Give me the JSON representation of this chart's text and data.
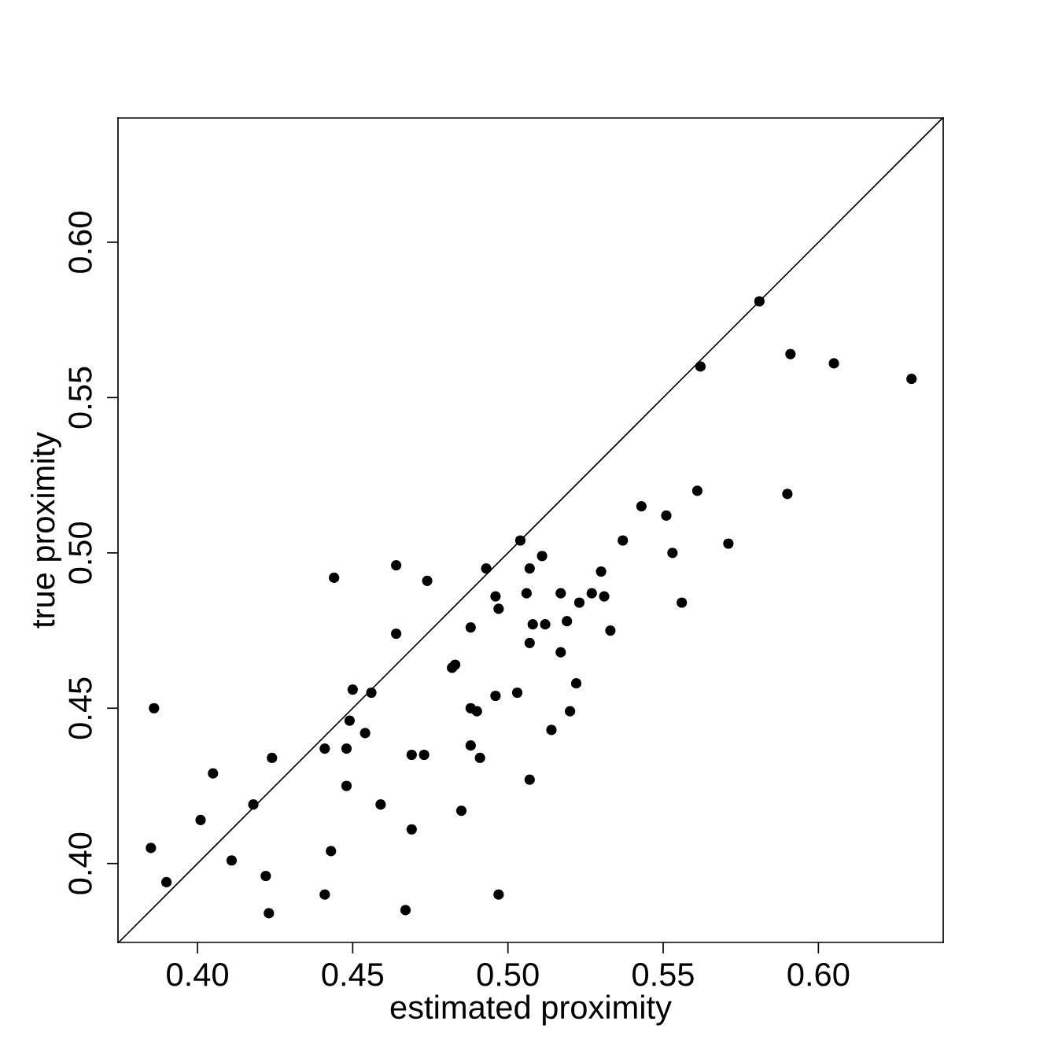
{
  "chart_data": {
    "type": "scatter",
    "xlabel": "estimated proximity",
    "ylabel": "true proximity",
    "xlim": [
      0.3744,
      0.6402
    ],
    "ylim": [
      0.3746,
      0.64
    ],
    "xticks": [
      {
        "value": 0.4,
        "label": "0.40"
      },
      {
        "value": 0.45,
        "label": "0.45"
      },
      {
        "value": 0.5,
        "label": "0.50"
      },
      {
        "value": 0.55,
        "label": "0.55"
      },
      {
        "value": 0.6,
        "label": "0.60"
      }
    ],
    "yticks": [
      {
        "value": 0.4,
        "label": "0.40"
      },
      {
        "value": 0.45,
        "label": "0.45"
      },
      {
        "value": 0.5,
        "label": "0.50"
      },
      {
        "value": 0.55,
        "label": "0.55"
      },
      {
        "value": 0.6,
        "label": "0.60"
      }
    ],
    "grid": false,
    "marker": "circle",
    "series": [
      {
        "color": "#000000",
        "x": [
          0.581,
          0.591,
          0.562,
          0.605,
          0.63,
          0.561,
          0.59,
          0.543,
          0.551,
          0.504,
          0.537,
          0.571,
          0.553,
          0.464,
          0.493,
          0.507,
          0.511,
          0.444,
          0.474,
          0.53,
          0.496,
          0.506,
          0.517,
          0.527,
          0.531,
          0.523,
          0.556,
          0.497,
          0.519,
          0.512,
          0.508,
          0.488,
          0.533,
          0.464,
          0.507,
          0.517,
          0.482,
          0.483,
          0.45,
          0.456,
          0.522,
          0.503,
          0.496,
          0.386,
          0.488,
          0.49,
          0.52,
          0.449,
          0.454,
          0.514,
          0.441,
          0.448,
          0.488,
          0.424,
          0.469,
          0.473,
          0.491,
          0.405,
          0.507,
          0.448,
          0.418,
          0.459,
          0.485,
          0.401,
          0.469,
          0.385,
          0.443,
          0.411,
          0.422,
          0.39,
          0.441,
          0.497,
          0.467,
          0.423
        ],
        "values": [
          0.581,
          0.564,
          0.56,
          0.561,
          0.556,
          0.52,
          0.519,
          0.515,
          0.512,
          0.504,
          0.504,
          0.503,
          0.5,
          0.496,
          0.495,
          0.495,
          0.499,
          0.492,
          0.491,
          0.494,
          0.486,
          0.487,
          0.487,
          0.487,
          0.486,
          0.484,
          0.484,
          0.482,
          0.478,
          0.477,
          0.477,
          0.476,
          0.475,
          0.474,
          0.471,
          0.468,
          0.463,
          0.464,
          0.456,
          0.455,
          0.458,
          0.455,
          0.454,
          0.45,
          0.45,
          0.449,
          0.449,
          0.446,
          0.442,
          0.443,
          0.437,
          0.437,
          0.438,
          0.434,
          0.435,
          0.435,
          0.434,
          0.429,
          0.427,
          0.425,
          0.419,
          0.419,
          0.417,
          0.414,
          0.411,
          0.405,
          0.404,
          0.401,
          0.396,
          0.394,
          0.39,
          0.39,
          0.385,
          0.384
        ]
      },
      {
        "type": "line",
        "color": "#000000",
        "marker": "none",
        "x": [
          0.3746,
          0.64
        ],
        "values": [
          0.3746,
          0.64
        ]
      }
    ]
  }
}
